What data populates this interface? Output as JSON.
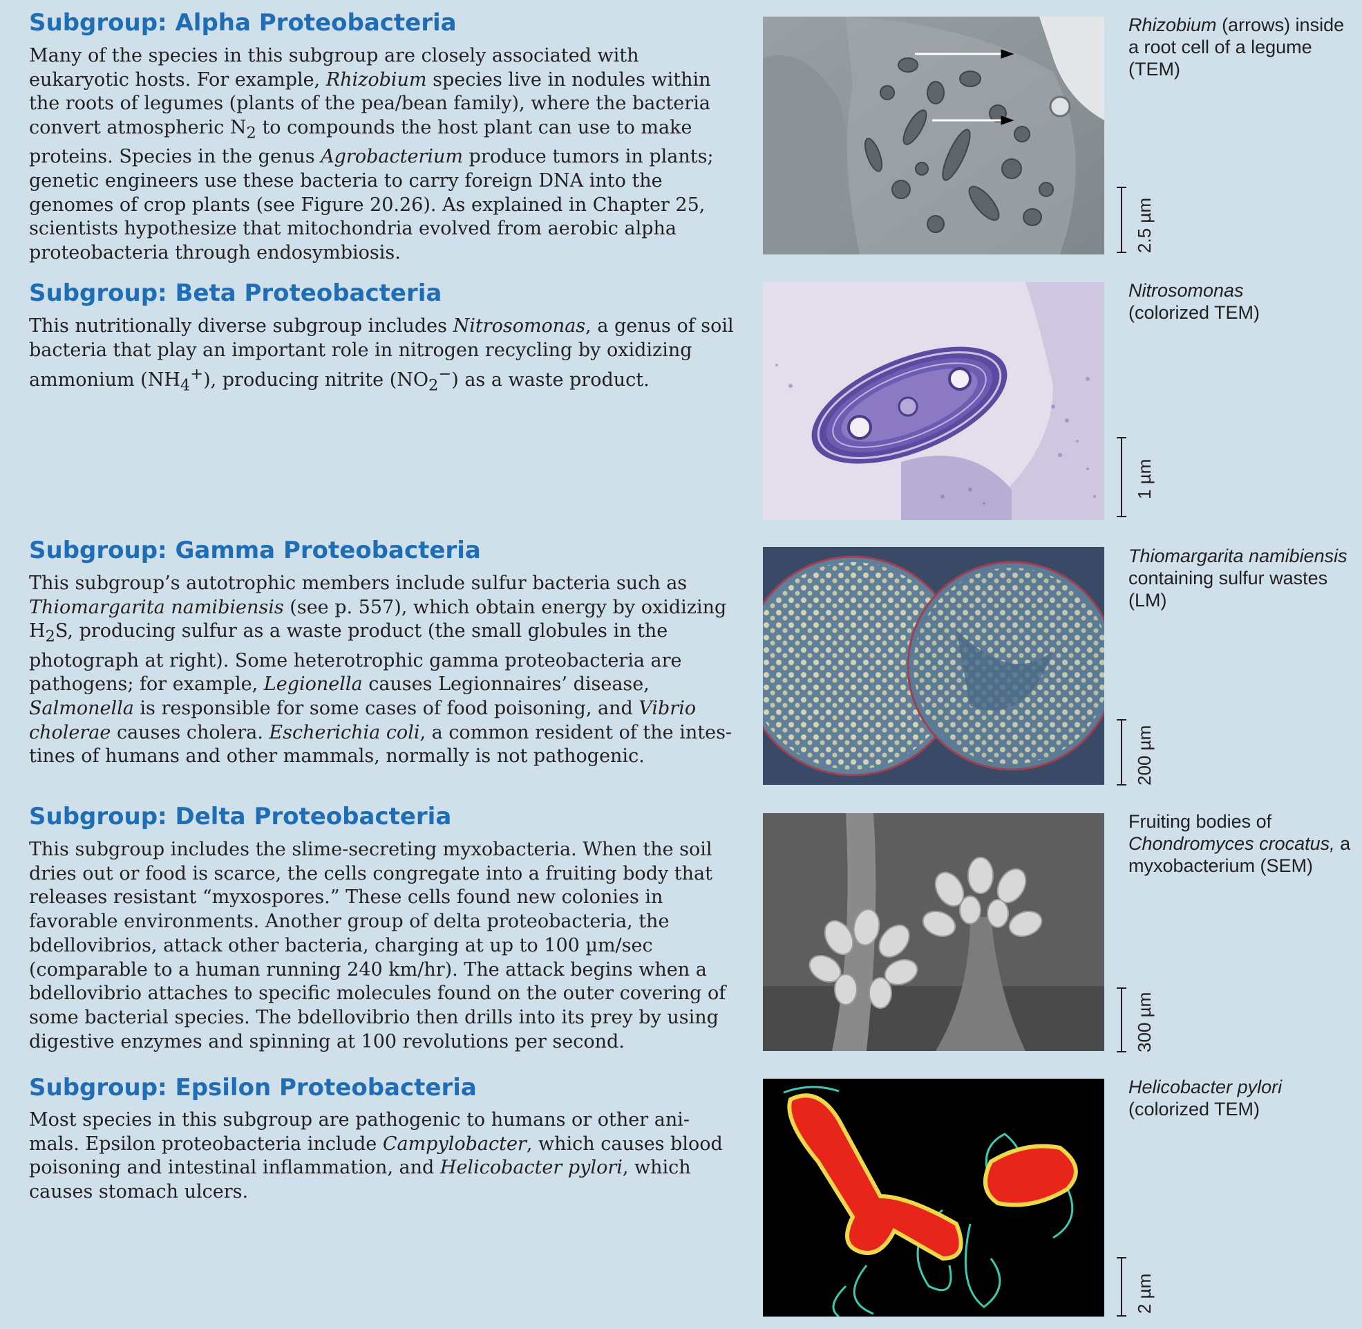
{
  "sections": [
    {
      "heading": "Subgroup: Alpha Proteobacteria",
      "body": [
        "Many of the species in this subgroup are closely associated with eukaryotic hosts. For example, ",
        "Rhizobium",
        " species live in nodules within the roots of legumes (plants of the pea/bean family), where the bacteria convert atmospheric N",
        "2",
        " to compounds the host plant can use to make proteins. Species in the genus ",
        "Agrobacterium",
        " produce tumors in plants; genetic engineers use these bacteria to carry foreign DNA into the genomes of crop plants (see Figure 20.26). As explained in Chapter 25, scientists hypothesize that mitochondria evolved from aerobic alpha proteobacteria through endosymbiosis."
      ],
      "caption_italic": "Rhizobium",
      "caption_rest": " (arrows) inside a root cell of a legume (TEM)",
      "scale": "2.5 µm"
    },
    {
      "heading": "Subgroup: Beta Proteobacteria",
      "body": [
        "This nutritionally diverse subgroup includes ",
        "Nitrosomonas",
        ", a genus of soil bacteria that play an important role in nitrogen recycling by oxidizing ammonium (NH",
        "4",
        "+",
        "), producing nitrite (NO",
        "2",
        "−",
        ") as a waste product."
      ],
      "caption_italic": "Nitrosomonas",
      "caption_rest": "(colorized TEM)",
      "scale": "1 µm"
    },
    {
      "heading": "Subgroup: Gamma Proteobacteria",
      "body": [
        "This subgroup’s autotrophic members include sulfur bacteria such as ",
        "Thiomargarita namibiensis",
        " (see p. 557), which obtain energy by oxidizing H",
        "2",
        "S, producing sulfur as a waste product (the small globules in the photograph at right). Some heterotrophic gamma proteobacteria are pathogens; for example, ",
        "Legionella",
        " causes Legionnaires’ disease, ",
        "Salmonella",
        " is responsible for some cases of food poisoning, and ",
        "Vibrio cholerae",
        " causes cholera. ",
        "Escherichia coli",
        ", a common resident of the intes-tines of humans and other mammals, normally is not pathogenic."
      ],
      "caption_italic": "Thiomargarita namibiensis",
      "caption_rest": " containing sulfur wastes (LM)",
      "scale": "200 µm"
    },
    {
      "heading": "Subgroup: Delta Proteobacteria",
      "body": [
        "This subgroup includes the slime-secreting myxobacteria. When the soil dries out or food is scarce, the cells congregate into a fruiting body that releases resistant “myxospores.” These cells found new colonies in favorable environments. Another group of delta proteobacteria, the bdellovibrios, attack other bacteria, charging at up to 100 µm/sec (comparable to a human running 240 km/hr). The attack begins when a bdellovibrio attaches to specific molecules found on the outer covering of some bacterial species. The bdellovibrio then drills into its prey by using digestive enzymes and spinning at 100 revolutions per second."
      ],
      "caption_pre": "Fruiting bodies of ",
      "caption_italic": "Chondromyces crocatus,",
      "caption_rest": " a myxobacterium (SEM)",
      "scale": "300 µm"
    },
    {
      "heading": "Subgroup: Epsilon Proteobacteria",
      "body": [
        "Most species in this subgroup are pathogenic to humans or other ani-mals. Epsilon proteobacteria include ",
        "Campylobacter",
        ", which causes blood poisoning and intestinal inflammation, and ",
        "Helicobacter pylori",
        ", which causes stomach ulcers."
      ],
      "caption_italic": "Helicobacter pylori",
      "caption_rest": "(colorized TEM)",
      "scale": "2 µm"
    }
  ]
}
